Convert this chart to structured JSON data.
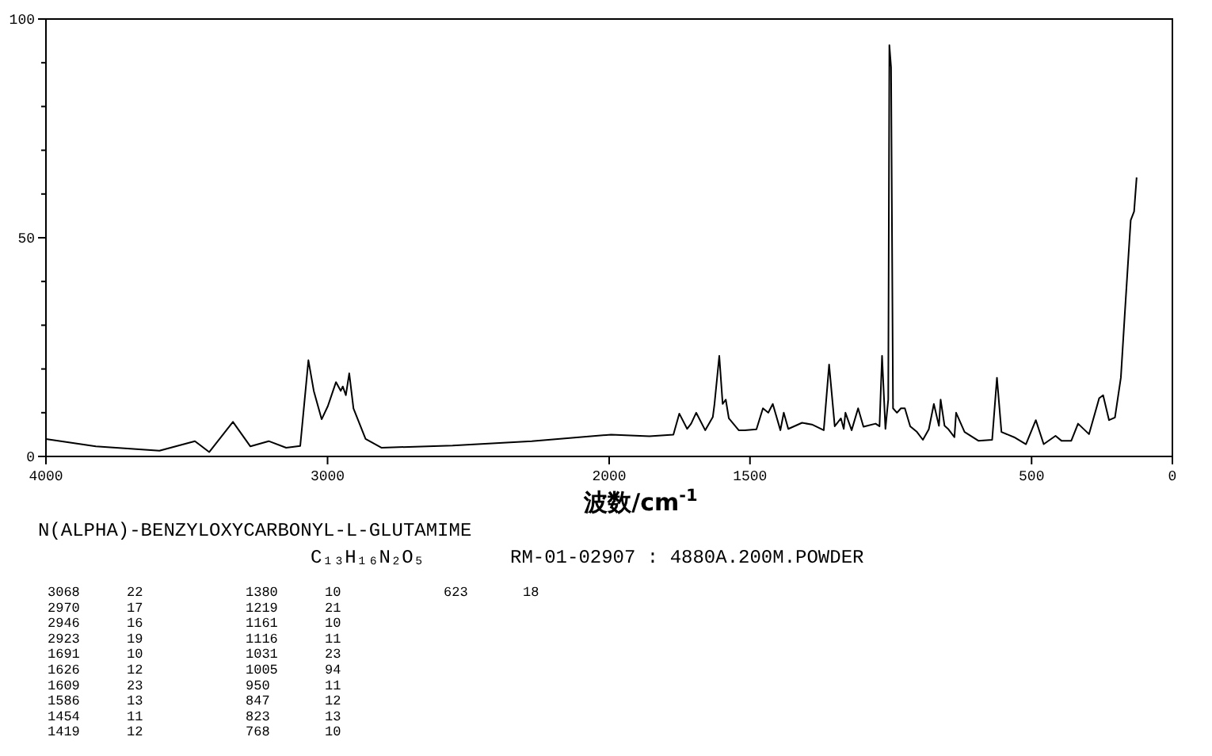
{
  "chart_data": {
    "type": "line",
    "title": "N(ALPHA)-BENZYLOXYCARBONYL-L-GLUTAMIME",
    "subtitle": "C₁₃H₁₆N₂O₅",
    "xlabel": "波数/cm$^{-1}$",
    "annotations": [
      "RM-01-02907 : 4880A.200M.POWDER",
      "3068",
      "22",
      "2970",
      "17",
      "2946",
      "16",
      "2923",
      "19",
      "1691",
      "10",
      "1626",
      "12",
      "1609",
      "23",
      "1586",
      "13",
      "1454",
      "11",
      "1419",
      "12",
      "1380",
      "10",
      "1219",
      "21",
      "1161",
      "10",
      "1116",
      "11",
      "1031",
      "23",
      "1005",
      "94",
      "950",
      "11",
      "847",
      "12",
      "823",
      "13",
      "768",
      "10",
      "623",
      "18"
    ],
    "x": [
      4000,
      3823,
      3597,
      3471,
      3420,
      3336,
      3274,
      3209,
      3147,
      3097,
      3068,
      3049,
      3021,
      2999,
      2970,
      2953,
      2946,
      2935,
      2923,
      2908,
      2865,
      2809,
      2556,
      2275,
      1993,
      1857,
      1772,
      1751,
      1723,
      1709,
      1691,
      1659,
      1632,
      1626,
      1609,
      1597,
      1586,
      1575,
      1540,
      1519,
      1477,
      1454,
      1435,
      1419,
      1392,
      1380,
      1364,
      1315,
      1280,
      1238,
      1219,
      1199,
      1177,
      1167,
      1161,
      1139,
      1116,
      1097,
      1054,
      1040,
      1031,
      1019,
      1009,
      1005,
      999,
      992,
      978,
      964,
      950,
      931,
      907,
      886,
      865,
      847,
      829,
      823,
      809,
      795,
      774,
      768,
      738,
      689,
      640,
      623,
      607,
      562,
      520,
      485,
      457,
      415,
      394,
      359,
      335,
      296,
      260,
      246,
      225,
      204,
      183,
      169,
      148,
      136,
      127
    ],
    "series": [
      {
        "color": "#000000",
        "values": [
          4,
          2.3,
          1.3,
          3.5,
          1,
          7.9,
          2.3,
          3.5,
          2,
          2.4,
          22,
          15,
          8.5,
          11.5,
          17,
          15,
          16,
          14,
          19,
          11,
          4,
          2,
          2.5,
          3.5,
          5,
          4.6,
          5,
          9.8,
          6.3,
          7.5,
          10,
          6,
          9,
          12,
          23,
          12,
          13,
          8.7,
          6,
          6,
          6.2,
          11,
          10,
          12,
          6,
          10,
          6.3,
          7.7,
          7.3,
          6,
          21,
          6.9,
          8.7,
          6.3,
          10,
          6,
          11,
          6.8,
          7.5,
          6.9,
          23,
          6.3,
          13,
          94,
          89,
          11,
          10,
          11,
          11,
          6.9,
          5.6,
          3.8,
          6.2,
          12,
          7,
          13,
          7,
          6.2,
          4.4,
          10,
          5.6,
          3.6,
          3.8,
          18,
          5.6,
          4.4,
          2.8,
          8.3,
          2.8,
          4.7,
          3.6,
          3.6,
          7.5,
          5.1,
          13.3,
          14,
          8.3,
          8.9,
          18,
          32.6,
          54,
          56,
          63.8
        ]
      }
    ],
    "xlim": [
      4000,
      0
    ],
    "xticks": [
      4000,
      3000,
      2000,
      1500,
      500,
      0
    ],
    "ylim": [
      0,
      100
    ],
    "yticks": [
      0,
      {
        "value": 10,
        "label": null
      },
      {
        "value": 20,
        "label": null
      },
      {
        "value": 30,
        "label": null
      },
      {
        "value": 40,
        "label": null
      },
      50,
      {
        "value": 60,
        "label": null
      },
      {
        "value": 70,
        "label": null
      },
      {
        "value": 80,
        "label": null
      },
      {
        "value": 90,
        "label": null
      },
      100
    ],
    "grid": false,
    "marker": "none",
    "line_style": "solid"
  }
}
